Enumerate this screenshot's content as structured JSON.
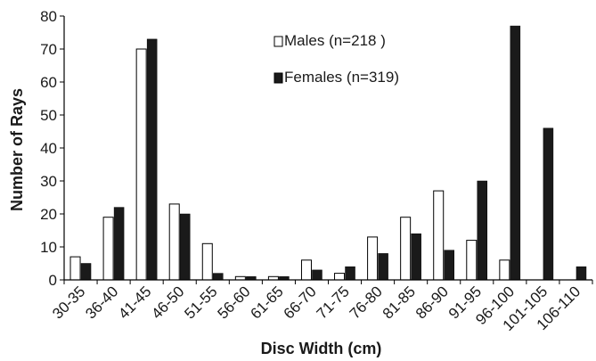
{
  "chart_data": {
    "type": "bar",
    "title": "",
    "xlabel": "Disc Width (cm)",
    "ylabel": "Number of Rays",
    "ylim": [
      0,
      80
    ],
    "yticks": [
      0,
      10,
      20,
      30,
      40,
      50,
      60,
      70,
      80
    ],
    "grid": false,
    "legend_position": "top-center",
    "categories": [
      "30-35",
      "36-40",
      "41-45",
      "46-50",
      "51-55",
      "56-60",
      "61-65",
      "66-70",
      "71-75",
      "76-80",
      "81-85",
      "86-90",
      "91-95",
      "96-100",
      "101-105",
      "106-110"
    ],
    "series": [
      {
        "name": "Males (n=218 )",
        "fill": "#ffffff",
        "stroke": "#000000",
        "values": [
          7,
          19,
          70,
          23,
          11,
          1,
          1,
          6,
          2,
          13,
          19,
          27,
          12,
          6,
          0,
          0
        ]
      },
      {
        "name": "Females (n=319)",
        "fill": "#1a1a1a",
        "stroke": "#000000",
        "values": [
          5,
          22,
          73,
          20,
          2,
          1,
          1,
          3,
          4,
          8,
          14,
          9,
          30,
          77,
          46,
          4
        ]
      }
    ]
  }
}
